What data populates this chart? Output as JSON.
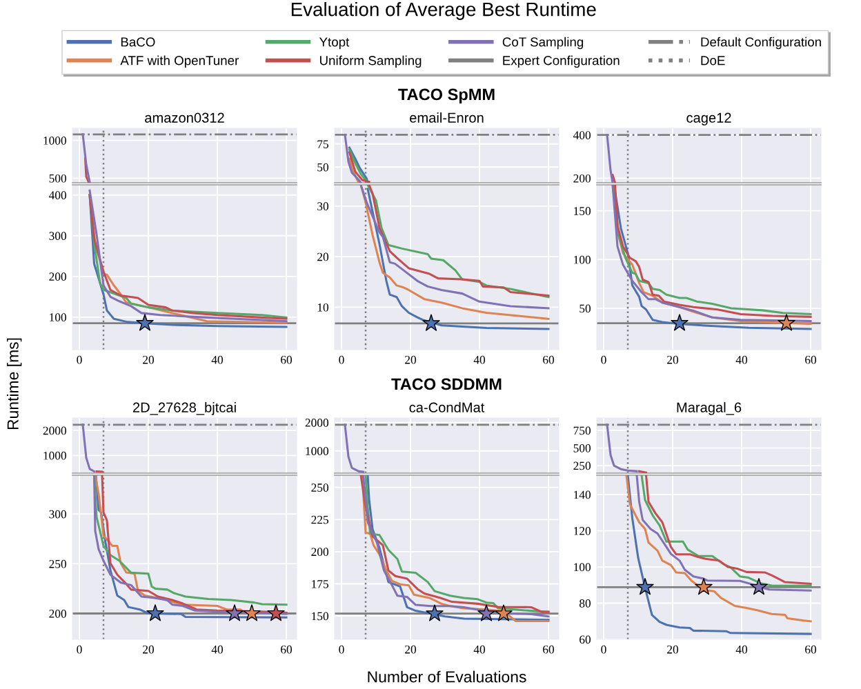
{
  "chart_data": [
    {
      "type": "line",
      "title": "amazon0312",
      "annotations": [
        "Evaluation of Average Best Runtime"
      ],
      "legend": "top",
      "grid": true,
      "tick_labels": "y",
      "xlim": [
        -2,
        63
      ],
      "xticks": [
        0,
        20,
        40,
        60
      ],
      "ylim": [
        440,
        1160
      ],
      "yticks": [
        500,
        1000
      ],
      "series": [
        {
          "color": "#c44e52",
          "x": [
            1.7,
            2,
            2.8
          ],
          "values": [
            760,
            520,
            440
          ]
        },
        {
          "color": "#8172b3",
          "x": [
            1,
            2,
            3
          ],
          "values": [
            1080,
            680,
            450
          ]
        }
      ],
      "ref_lines": [
        {
          "axis": "y",
          "value": 1080,
          "label": "Default Configuration",
          "color": "#808080",
          "line_style": "dashdot"
        },
        {
          "axis": "x",
          "value": 7,
          "color": "#808080",
          "line_style": "dotted"
        }
      ]
    },
    {
      "type": "line",
      "ylabel": "Runtime [ms]",
      "legend": "top",
      "grid": true,
      "xlim": [
        -2,
        63
      ],
      "xticks": [
        0,
        20,
        40,
        60
      ],
      "ylim": [
        20,
        425
      ],
      "yticks": [
        100,
        200,
        300,
        400
      ],
      "series": [
        {
          "name": "BaCO",
          "color": "#4c72b0",
          "x": [
            3,
            4.3,
            6,
            7,
            8,
            10,
            14,
            19,
            27,
            40,
            60
          ],
          "values": [
            400,
            231,
            184,
            156,
            116,
            96,
            88,
            85,
            81,
            78,
            76
          ]
        },
        {
          "name": "ATF with OpenTuner",
          "color": "#dd8452",
          "x": [
            3,
            4.6,
            7,
            8,
            10,
            12,
            13.6,
            20,
            27,
            37,
            60
          ],
          "values": [
            400,
            281,
            207,
            204,
            178,
            156,
            136,
            124,
            110,
            90,
            86
          ]
        },
        {
          "name": "Ytopt",
          "color": "#55a868",
          "x": [
            3,
            4.3,
            6,
            7,
            9,
            13.6,
            15,
            20,
            27,
            40,
            53,
            60
          ],
          "values": [
            400,
            281,
            184,
            167,
            161,
            147,
            133,
            124,
            116,
            110,
            105,
            99
          ]
        },
        {
          "name": "Uniform Sampling",
          "color": "#c44e52",
          "x": [
            3,
            4.3,
            7,
            9,
            12,
            17,
            20,
            25,
            27,
            33,
            40,
            53,
            60
          ],
          "values": [
            400,
            292,
            212,
            167,
            153,
            147,
            130,
            124,
            116,
            110,
            105,
            99,
            96
          ]
        },
        {
          "name": "CoT Sampling",
          "color": "#8172b3",
          "x": [
            3,
            5,
            7,
            9,
            11.6,
            15,
            18,
            23.5,
            37,
            53,
            60
          ],
          "values": [
            411,
            303,
            178,
            150,
            139,
            127,
            110,
            105,
            99,
            93,
            90
          ]
        },
        {
          "type": "scatter",
          "marker": "star",
          "x": [
            19
          ],
          "values": [
            85
          ],
          "colors": [
            "#4c72b0"
          ]
        }
      ],
      "ref_lines": [
        {
          "axis": "y",
          "value": 85,
          "label": "Expert Configuration",
          "color": "#808080",
          "line_style": "solid"
        },
        {
          "axis": "x",
          "value": 7,
          "label": "DoE",
          "color": "#808080",
          "line_style": "dotted"
        }
      ]
    },
    {
      "type": "line",
      "title": "email-Enron",
      "annotations": [
        "TACO SpMM"
      ],
      "grid": true,
      "tick_labels": "y",
      "xlim": [
        -2,
        63
      ],
      "xticks": [
        0,
        20,
        40,
        60
      ],
      "ylim": [
        33,
        92
      ],
      "yticks": [
        50,
        75
      ],
      "series": [
        {
          "color": "#4c72b0",
          "x": [
            2.3,
            4,
            5.3,
            7.3,
            7.6
          ],
          "values": [
            71,
            59,
            49,
            37.5,
            33
          ]
        },
        {
          "color": "#dd8452",
          "x": [
            2.3,
            3.3,
            5
          ],
          "values": [
            59,
            46,
            33
          ]
        },
        {
          "color": "#55a868",
          "x": [
            2.3,
            4,
            5.6,
            7.6
          ],
          "values": [
            69,
            54,
            42.5,
            33
          ]
        },
        {
          "color": "#c44e52",
          "x": [
            2.3,
            4,
            6,
            8
          ],
          "values": [
            66,
            45,
            36,
            34
          ]
        },
        {
          "color": "#8172b3",
          "x": [
            1,
            2,
            3,
            5,
            5.6
          ],
          "values": [
            85,
            56,
            44,
            36,
            33
          ]
        }
      ],
      "ref_lines": [
        {
          "axis": "y",
          "value": 85,
          "color": "#808080",
          "line_style": "dashdot"
        },
        {
          "axis": "x",
          "value": 7,
          "color": "#808080",
          "line_style": "dotted"
        }
      ]
    },
    {
      "type": "line",
      "grid": true,
      "xlim": [
        -2,
        63
      ],
      "xticks": [
        0,
        20,
        40,
        60
      ],
      "ylim": [
        1.6,
        34.2
      ],
      "yticks": [
        10,
        20,
        30
      ],
      "series": [
        {
          "color": "#4c72b0",
          "x": [
            7.6,
            9,
            11,
            13,
            14,
            16,
            17.5,
            19.5,
            22,
            23.5,
            29,
            42,
            60
          ],
          "values": [
            33.4,
            28.9,
            22.5,
            15.2,
            12.5,
            12,
            10.2,
            8.9,
            8,
            7.5,
            6.4,
            5.9,
            5.7
          ]
        },
        {
          "color": "#dd8452",
          "x": [
            5.6,
            7,
            9,
            11,
            12,
            14,
            16,
            18,
            19.5,
            24,
            29,
            35,
            42,
            60
          ],
          "values": [
            34.2,
            30.7,
            24.3,
            18.9,
            16.8,
            15.9,
            14.3,
            13.9,
            13.4,
            11.6,
            10.9,
            9.8,
            8.9,
            7.7
          ]
        },
        {
          "color": "#55a868",
          "x": [
            7.6,
            10,
            11.6,
            13.6,
            17.5,
            25,
            26,
            29.5,
            33,
            35,
            40,
            42,
            49,
            60
          ],
          "values": [
            34.2,
            31.1,
            25.7,
            22.3,
            21.6,
            20.5,
            19.6,
            19.3,
            17.3,
            15.5,
            15,
            14.3,
            13.6,
            12
          ]
        },
        {
          "color": "#c44e52",
          "x": [
            8,
            9,
            11,
            14,
            16,
            19.5,
            25.5,
            28,
            35,
            40,
            41,
            47,
            49,
            60
          ],
          "values": [
            34.2,
            32.5,
            25.7,
            21.1,
            19.8,
            17.7,
            16.6,
            15.7,
            15.5,
            15.2,
            14.1,
            13.9,
            13,
            12.3
          ]
        },
        {
          "color": "#8172b3",
          "x": [
            5.6,
            7.3,
            11,
            12,
            14,
            15.5,
            18,
            22,
            25,
            29,
            35,
            40,
            49,
            60
          ],
          "values": [
            34.2,
            30.7,
            24.8,
            23.9,
            18.9,
            18.6,
            17.3,
            15.2,
            14.1,
            13.4,
            12.7,
            11.1,
            10.2,
            9.8
          ]
        },
        {
          "type": "scatter",
          "marker": "star",
          "x": [
            26
          ],
          "values": [
            6.8
          ],
          "colors": [
            "#4c72b0"
          ]
        }
      ],
      "ref_lines": [
        {
          "axis": "y",
          "value": 6.8,
          "color": "#808080",
          "line_style": "solid"
        },
        {
          "axis": "x",
          "value": 7,
          "color": "#808080",
          "line_style": "dotted"
        }
      ]
    },
    {
      "type": "line",
      "title": "cage12",
      "grid": true,
      "tick_labels": "y",
      "xlim": [
        -2,
        63
      ],
      "xticks": [
        0,
        20,
        40,
        60
      ],
      "ylim": [
        179,
        431
      ],
      "yticks": [
        200,
        400
      ],
      "series": [
        {
          "color": "#c44e52",
          "x": [
            2.6,
            3.3
          ],
          "values": [
            215,
            179
          ]
        },
        {
          "color": "#8172b3",
          "x": [
            1,
            2,
            2.6
          ],
          "values": [
            400,
            237,
            179
          ]
        }
      ],
      "ref_lines": [
        {
          "axis": "y",
          "value": 400,
          "color": "#808080",
          "line_style": "dashdot"
        },
        {
          "axis": "x",
          "value": 7,
          "color": "#808080",
          "line_style": "dotted"
        }
      ]
    },
    {
      "type": "line",
      "grid": true,
      "xlim": [
        -2,
        63
      ],
      "xticks": [
        0,
        20,
        40,
        60
      ],
      "ylim": [
        7.6,
        176.6
      ],
      "yticks": [
        50,
        100,
        150
      ],
      "series": [
        {
          "color": "#4c72b0",
          "x": [
            3,
            5,
            7,
            8.3,
            10.3,
            11,
            12.3,
            14.2,
            17,
            22,
            29,
            42,
            60
          ],
          "values": [
            176.6,
            132,
            106.5,
            73.5,
            61.8,
            52.4,
            48.8,
            38.2,
            35.9,
            34,
            32.4,
            30,
            28.8
          ]
        },
        {
          "color": "#dd8452",
          "x": [
            2.6,
            4.3,
            5.6,
            8.3,
            10.3,
            11.6,
            14.2,
            17,
            22,
            26,
            31.5,
            39.7,
            60
          ],
          "values": [
            176.6,
            125,
            106.5,
            94.7,
            75.9,
            66.5,
            62.9,
            55.9,
            51.2,
            46.5,
            40.6,
            37,
            34
          ]
        },
        {
          "color": "#55a868",
          "x": [
            3,
            4.3,
            6.3,
            8.3,
            9.3,
            10.3,
            13,
            14.2,
            16.2,
            18.2,
            22,
            24,
            27,
            31.5,
            37,
            46,
            52,
            60
          ],
          "values": [
            176.6,
            125,
            101.8,
            86.5,
            85.3,
            78.2,
            75.9,
            70,
            68.8,
            64,
            60.6,
            60.6,
            57,
            54.7,
            50,
            48,
            45.3,
            44
          ]
        },
        {
          "color": "#c44e52",
          "x": [
            3.3,
            4,
            5.6,
            7.6,
            9.3,
            10.3,
            11.3,
            13,
            14.2,
            16,
            17.5,
            22,
            26,
            33,
            39.7,
            49,
            60
          ],
          "values": [
            176.6,
            134.7,
            113.5,
            101.8,
            98.2,
            92.4,
            79.4,
            77,
            64,
            62.9,
            57,
            53.5,
            51.2,
            48.8,
            44,
            42.2,
            41.3
          ]
        },
        {
          "color": "#8172b3",
          "x": [
            2.6,
            4,
            5.6,
            8.3,
            11,
            13,
            15,
            17,
            22,
            26,
            31.5,
            39.7,
            60
          ],
          "values": [
            176.6,
            113.5,
            94.7,
            78.2,
            66.5,
            59.4,
            59.4,
            55.9,
            51.2,
            47.6,
            40.6,
            38.2,
            37
          ]
        },
        {
          "type": "scatter",
          "marker": "star",
          "x": [
            22,
            53
          ],
          "values": [
            34.7,
            34.7
          ],
          "colors": [
            "#4c72b0",
            "#dd8452"
          ]
        }
      ],
      "ref_lines": [
        {
          "axis": "y",
          "value": 34.7,
          "color": "#808080",
          "line_style": "solid"
        },
        {
          "axis": "x",
          "value": 7,
          "color": "#808080",
          "line_style": "dotted"
        }
      ]
    },
    {
      "type": "line",
      "title": "2D_27628_bjtcai",
      "grid": true,
      "tick_labels": "y",
      "xlim": [
        -2,
        63
      ],
      "xticks": [
        0,
        20,
        40,
        60
      ],
      "ylim": [
        291,
        2500
      ],
      "yticks": [
        1000,
        2000
      ],
      "series": [
        {
          "color": "#c44e52",
          "x": [
            5,
            6.6
          ],
          "values": [
            360,
            350
          ]
        },
        {
          "color": "#8172b3",
          "x": [
            1,
            2,
            3,
            4.3
          ],
          "values": [
            2230,
            910,
            460,
            360
          ]
        }
      ],
      "ref_lines": [
        {
          "axis": "y",
          "value": 2230,
          "color": "#808080",
          "line_style": "dashdot"
        },
        {
          "axis": "x",
          "value": 7,
          "color": "#808080",
          "line_style": "dotted"
        }
      ]
    },
    {
      "type": "line",
      "grid": true,
      "xlim": [
        -2,
        63
      ],
      "xticks": [
        0,
        20,
        40,
        60
      ],
      "ylim": [
        174,
        339
      ],
      "yticks": [
        200,
        250,
        300
      ],
      "series": [
        {
          "color": "#4c72b0",
          "x": [
            4.8,
            5.6,
            6.3,
            7.6,
            9,
            11,
            13,
            14.2,
            17.5,
            20,
            29.5,
            30.8,
            60
          ],
          "values": [
            339,
            304,
            301.6,
            271,
            243.6,
            218,
            213.5,
            206.5,
            204,
            200,
            199.5,
            196.5,
            196
          ]
        },
        {
          "color": "#dd8452",
          "x": [
            4.6,
            5.6,
            7,
            9.6,
            11,
            12,
            13.6,
            16,
            17,
            19,
            24,
            30,
            40,
            42.7,
            46.7,
            48,
            60
          ],
          "values": [
            339,
            320,
            278.4,
            268,
            268,
            250.6,
            241.3,
            240,
            222.7,
            218,
            214.6,
            208.8,
            207.6,
            204,
            204,
            200.7,
            200
          ]
        },
        {
          "color": "#55a868",
          "x": [
            4.3,
            5,
            7,
            9,
            11.6,
            15,
            20,
            21,
            22,
            25.5,
            27.5,
            30.8,
            37.4,
            44,
            50.7,
            53,
            60
          ],
          "values": [
            339,
            297,
            268,
            258.7,
            253,
            241,
            240,
            227,
            225,
            224,
            220.4,
            217,
            214.6,
            213.5,
            211,
            209.3,
            208.8
          ]
        },
        {
          "color": "#c44e52",
          "x": [
            6.6,
            7,
            8,
            9,
            11,
            13.6,
            15,
            20,
            22.8,
            27,
            30,
            34,
            40,
            53,
            60
          ],
          "values": [
            339,
            301.6,
            293.5,
            250.6,
            239,
            229.7,
            224,
            222.7,
            217,
            213.5,
            210,
            204,
            203,
            201.9,
            200.7
          ]
        },
        {
          "color": "#8172b3",
          "x": [
            4.3,
            4.6,
            5.6,
            7,
            9,
            12,
            15,
            18,
            21.5,
            25.5,
            27,
            30,
            33.4,
            40,
            60
          ],
          "values": [
            339,
            283,
            264.5,
            253,
            239,
            231,
            228.5,
            217,
            215.8,
            213.5,
            208.8,
            207.6,
            203,
            201.9,
            199.5
          ]
        },
        {
          "type": "scatter",
          "marker": "star",
          "x": [
            22,
            45,
            50,
            57
          ],
          "values": [
            200,
            200,
            200,
            200
          ],
          "colors": [
            "#4c72b0",
            "#8172b3",
            "#dd8452",
            "#c44e52"
          ]
        }
      ],
      "ref_lines": [
        {
          "axis": "y",
          "value": 200,
          "color": "#808080",
          "line_style": "solid"
        },
        {
          "axis": "x",
          "value": 7,
          "color": "#808080",
          "line_style": "dotted"
        }
      ]
    },
    {
      "type": "line",
      "title": "ca-CondMat",
      "annotations": [
        "TACO SDDMM"
      ],
      "grid": true,
      "tick_labels": "y",
      "xlim": [
        -2,
        63
      ],
      "xticks": [
        0,
        20,
        40,
        60
      ],
      "ylim": [
        216,
        2160
      ],
      "yticks": [
        1000,
        2000
      ],
      "series": [
        {
          "color": "#8172b3",
          "x": [
            1,
            2,
            3,
            5,
            6.3
          ],
          "values": [
            1920,
            800,
            400,
            280,
            260
          ]
        }
      ],
      "ref_lines": [
        {
          "axis": "y",
          "value": 1920,
          "color": "#808080",
          "line_style": "dashdot"
        },
        {
          "axis": "x",
          "value": 7,
          "color": "#808080",
          "line_style": "dotted"
        }
      ]
    },
    {
      "type": "line",
      "xlabel": "Number of Evaluations",
      "grid": true,
      "xlim": [
        -2,
        63
      ],
      "xticks": [
        0,
        20,
        40,
        60
      ],
      "ylim": [
        131.8,
        259.5
      ],
      "yticks": [
        150,
        175,
        200,
        225,
        250
      ],
      "series": [
        {
          "color": "#4c72b0",
          "x": [
            7.6,
            8,
            9,
            11,
            13.6,
            17,
            19,
            21.5,
            30,
            35.5,
            60
          ],
          "values": [
            259.5,
            240.7,
            217.5,
            203,
            176.4,
            172.9,
            156.8,
            154,
            149.6,
            147.9,
            147
          ]
        },
        {
          "color": "#dd8452",
          "x": [
            6,
            7,
            8.3,
            9.3,
            11,
            13,
            14.6,
            17,
            19.5,
            21,
            25.5,
            29,
            31.5,
            35.5,
            42,
            47,
            50.5,
            60
          ],
          "values": [
            259.5,
            214.8,
            214,
            205,
            197.9,
            185.4,
            177.3,
            174.6,
            173.8,
            166.6,
            164,
            159.5,
            157.7,
            155.9,
            155,
            153.6,
            146,
            146
          ]
        },
        {
          "color": "#55a868",
          "x": [
            7,
            7.6,
            8.3,
            11,
            13.6,
            16.2,
            17.5,
            21.5,
            25,
            27,
            31.5,
            35.5,
            39.5,
            42,
            44,
            45.4,
            55,
            60
          ],
          "values": [
            259.5,
            235,
            214,
            213,
            201.4,
            194.3,
            184.5,
            183.6,
            176.4,
            169.3,
            165.7,
            164,
            163,
            160.4,
            160,
            156,
            154,
            153.2
          ]
        },
        {
          "color": "#c44e52",
          "x": [
            5.6,
            7,
            9,
            12,
            13.6,
            15.6,
            19,
            22,
            24,
            28.7,
            32,
            39.5,
            45.4,
            55,
            58,
            60
          ],
          "values": [
            259.5,
            235,
            212,
            205,
            185.4,
            181,
            179,
            171,
            167.5,
            164,
            161,
            159.5,
            157,
            156.8,
            153.2,
            153.2
          ]
        },
        {
          "color": "#8172b3",
          "x": [
            6.3,
            7.6,
            10.3,
            12.3,
            15,
            16.2,
            19,
            21.5,
            26,
            31.5,
            35.5,
            42,
            48.7,
            55,
            60
          ],
          "values": [
            259.5,
            222.9,
            206.8,
            185.4,
            172,
            165.7,
            164.8,
            158.6,
            157.7,
            157.7,
            156.8,
            153.6,
            151.8,
            151.4,
            149.6
          ]
        },
        {
          "type": "scatter",
          "marker": "star",
          "x": [
            27,
            42,
            47
          ],
          "values": [
            151.8,
            151.8,
            151.8
          ],
          "colors": [
            "#4c72b0",
            "#8172b3",
            "#dd8452"
          ]
        }
      ],
      "ref_lines": [
        {
          "axis": "y",
          "value": 151.8,
          "color": "#808080",
          "line_style": "solid"
        },
        {
          "axis": "x",
          "value": 7,
          "color": "#808080",
          "line_style": "dotted"
        }
      ]
    },
    {
      "type": "line",
      "title": "Maragal_6",
      "grid": true,
      "tick_labels": "y",
      "xlim": [
        -2,
        63
      ],
      "xticks": [
        0,
        20,
        40,
        60
      ],
      "ylim": [
        143,
        927
      ],
      "yticks": [
        250,
        500,
        750
      ],
      "series": [
        {
          "color": "#c44e52",
          "x": [
            10.3,
            12.3
          ],
          "values": [
            170,
            150
          ]
        },
        {
          "color": "#8172b3",
          "x": [
            1,
            2,
            3,
            5,
            7,
            9.6
          ],
          "values": [
            830,
            400,
            250,
            200,
            180,
            170
          ]
        }
      ],
      "ref_lines": [
        {
          "axis": "y",
          "value": 830,
          "color": "#808080",
          "line_style": "dashdot"
        },
        {
          "axis": "x",
          "value": 7,
          "color": "#808080",
          "line_style": "dotted"
        }
      ]
    },
    {
      "type": "line",
      "grid": true,
      "xlim": [
        -2,
        63
      ],
      "xticks": [
        0,
        20,
        40,
        60
      ],
      "ylim": [
        60,
        150.7
      ],
      "yticks": [
        60,
        80,
        100,
        120,
        140
      ],
      "series": [
        {
          "color": "#4c72b0",
          "x": [
            7,
            8.3,
            10,
            12,
            14,
            16.2,
            18.2,
            22,
            25,
            26,
            35.5,
            36.8,
            60
          ],
          "values": [
            150.7,
            127,
            105,
            88.5,
            73.5,
            69.7,
            68,
            66.6,
            66.3,
            64.8,
            64.5,
            63.5,
            63
          ]
        },
        {
          "color": "#dd8452",
          "x": [
            6.6,
            7.6,
            10.3,
            12,
            13,
            15.6,
            17,
            19.5,
            21,
            23.5,
            25.5,
            29,
            32,
            34,
            38,
            41.4,
            44.7,
            48.7,
            52.6,
            53.3,
            58,
            60
          ],
          "values": [
            150.7,
            134.7,
            124.7,
            121,
            113.5,
            109,
            103.5,
            101,
            97,
            96.6,
            92.3,
            87.3,
            86.6,
            82.9,
            78.5,
            77.3,
            76,
            74,
            73.5,
            71.6,
            70.4,
            70
          ]
        },
        {
          "color": "#55a868",
          "x": [
            11,
            12,
            14.2,
            16.2,
            18.2,
            23,
            24.3,
            27.5,
            31.5,
            34.7,
            36.8,
            39.5,
            42,
            45.5,
            48.7,
            60
          ],
          "values": [
            150.7,
            137,
            128.5,
            123,
            114,
            114,
            109.7,
            106,
            106,
            101.6,
            99.8,
            94.8,
            94.1,
            91,
            89.7,
            89.6
          ]
        },
        {
          "color": "#c44e52",
          "x": [
            12.3,
            13,
            15,
            17,
            19.5,
            21,
            25,
            27,
            29.5,
            33.4,
            36,
            38.7,
            41.4,
            46.7,
            48.7,
            52.6,
            60
          ],
          "values": [
            150.7,
            136,
            129.7,
            124.7,
            111,
            107,
            107,
            105.7,
            104.5,
            103.5,
            100,
            99.1,
            97.2,
            97,
            95.4,
            91.6,
            90.7
          ]
        },
        {
          "color": "#8172b3",
          "x": [
            9.6,
            10.3,
            11.3,
            13.6,
            15.6,
            18.2,
            19.5,
            22,
            23.5,
            26,
            29,
            30,
            39.5,
            42,
            46,
            48,
            60
          ],
          "values": [
            150.7,
            136,
            126,
            121,
            118.5,
            111,
            107.2,
            103.5,
            98.5,
            94.8,
            93.5,
            92.5,
            92.3,
            91,
            88.5,
            87.5,
            87
          ]
        },
        {
          "type": "scatter",
          "marker": "star",
          "x": [
            12,
            29,
            45
          ],
          "values": [
            88.8,
            88.8,
            88.8
          ],
          "colors": [
            "#4c72b0",
            "#dd8452",
            "#8172b3"
          ]
        }
      ],
      "ref_lines": [
        {
          "axis": "y",
          "value": 88.8,
          "color": "#808080",
          "line_style": "solid"
        },
        {
          "axis": "x",
          "value": 7,
          "color": "#808080",
          "line_style": "dotted"
        }
      ]
    }
  ]
}
